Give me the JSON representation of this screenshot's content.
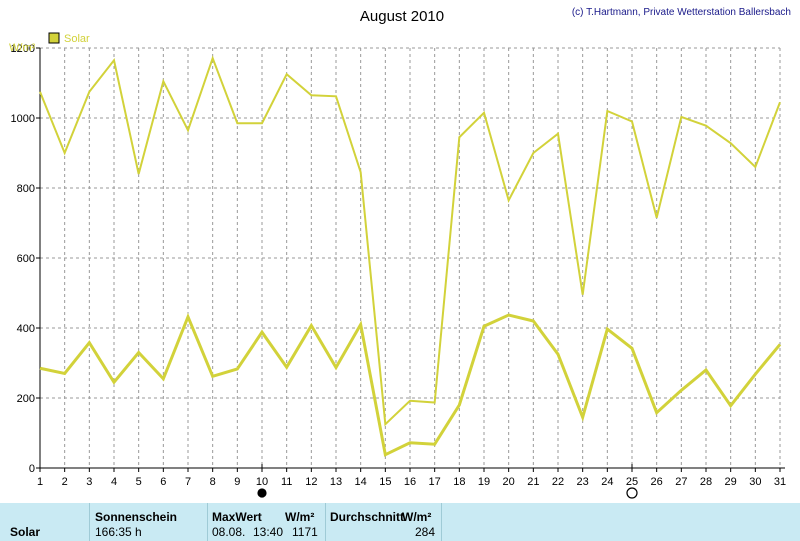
{
  "chart_data": {
    "type": "line",
    "title": "August 2010",
    "copyright": "(c) T.Hartmann, Private Wetterstation Ballersbach",
    "ylabel": "W/m²",
    "ylim": [
      0,
      1200
    ],
    "yticks": [
      0,
      200,
      400,
      600,
      800,
      1000,
      1200
    ],
    "x": [
      1,
      2,
      3,
      4,
      5,
      6,
      7,
      8,
      9,
      10,
      11,
      12,
      13,
      14,
      15,
      16,
      17,
      18,
      19,
      20,
      21,
      22,
      23,
      24,
      25,
      26,
      27,
      28,
      29,
      30,
      31
    ],
    "xlim": [
      1,
      31
    ],
    "grid": true,
    "legend": {
      "label": "Solar",
      "placement": "top-left"
    },
    "series": [
      {
        "name": "Solar",
        "role": "max",
        "values": [
          1075,
          900,
          1075,
          1165,
          840,
          1105,
          965,
          1171,
          985,
          985,
          1125,
          1065,
          1062,
          845,
          125,
          192,
          187,
          945,
          1015,
          765,
          900,
          955,
          495,
          1020,
          990,
          715,
          1003,
          978,
          928,
          860,
          1045
        ]
      },
      {
        "name": "Solar",
        "role": "average",
        "values": [
          285,
          270,
          358,
          245,
          330,
          255,
          432,
          262,
          283,
          388,
          288,
          407,
          287,
          410,
          38,
          72,
          68,
          180,
          405,
          437,
          420,
          325,
          145,
          397,
          342,
          158,
          222,
          280,
          178,
          268,
          353
        ]
      }
    ],
    "colors": {
      "line": "#d2d23a",
      "grid": "#9a9a9a",
      "axis": "#000000"
    },
    "moon_phases": [
      {
        "day": 10,
        "phase": "new-moon"
      },
      {
        "day": 25,
        "phase": "full-moon"
      }
    ]
  },
  "footer": {
    "row_label": "Solar",
    "sunshine_header": "Sonnenschein",
    "sunshine_value": "166:35 h",
    "max_header": "MaxWert",
    "max_unit": "W/m²",
    "max_date": "08.08.",
    "max_time": "13:40",
    "max_value": "1171",
    "avg_header": "Durchschnitt",
    "avg_unit": "W/m²",
    "avg_value": "284"
  }
}
